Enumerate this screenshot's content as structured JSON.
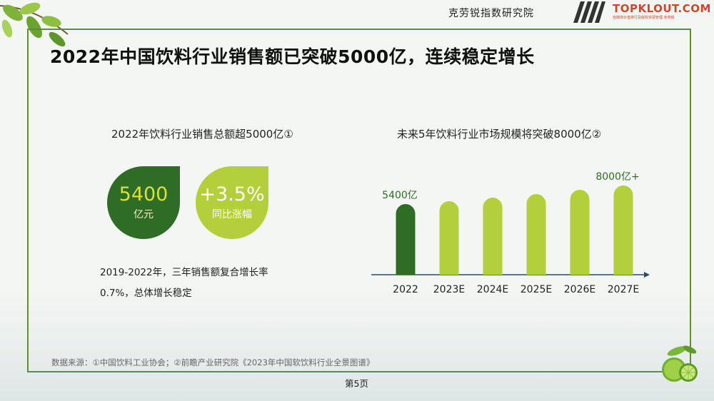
{
  "header": {
    "org_name": "克劳锐指数研究院",
    "logo_text": "TOPKLOUT.COM",
    "logo_subtitle": "自媒体价值排行及版权资源管理 克劳锐"
  },
  "title": "2022年中国饮料行业销售额已突破5000亿，连续稳定增长",
  "left_panel": {
    "subtitle": "2022年饮料行业销售总额超5000亿①",
    "kpi_sales": {
      "value": "5400",
      "unit": "亿元",
      "color": "#2f6d26"
    },
    "kpi_growth": {
      "value": "+3.5%",
      "unit": "同比涨幅",
      "color": "#b3cf3b"
    },
    "summary_line1": "2019-2022年，三年销售额复合增长率",
    "summary_line2": "0.7%，总体增长稳定"
  },
  "right_panel": {
    "subtitle": "未来5年饮料行业市场规模将突破8000亿②"
  },
  "chart_data": {
    "type": "bar",
    "title": "未来5年饮料行业市场规模将突破8000亿②",
    "categories": [
      "2022",
      "2023E",
      "2024E",
      "2025E",
      "2026E",
      "2027E"
    ],
    "series": [
      {
        "values": [
          5400,
          5800,
          6300,
          6800,
          7400,
          8000
        ]
      }
    ],
    "value_unit": "亿",
    "data_labels": [
      {
        "category": "2022",
        "text": "5400亿"
      },
      {
        "category": "2027E",
        "text": "8000亿+"
      }
    ],
    "bar_colors": [
      "#2f6d26",
      "#b3cf3b",
      "#b3cf3b",
      "#b3cf3b",
      "#b3cf3b",
      "#b3cf3b"
    ],
    "label_colors": {
      "2022": "#2f6d26",
      "2027E": "#2f6d26"
    },
    "ylim": [
      0,
      8500
    ],
    "grid": false,
    "axis_arrow": true
  },
  "footer": {
    "source": "数据来源：①中国饮料工业协会；②前瞻产业研究院《2023年中国软饮料行业全景图谱》",
    "page_number": "第5页"
  }
}
